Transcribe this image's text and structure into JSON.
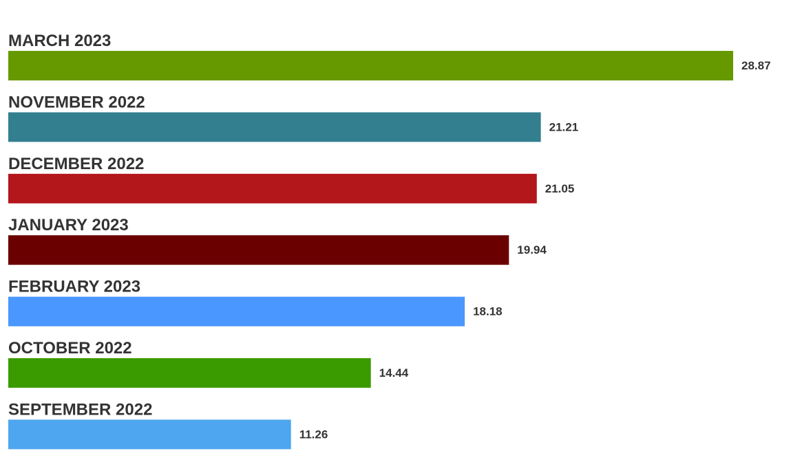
{
  "chart_data": {
    "type": "bar",
    "orientation": "horizontal",
    "categories": [
      "MARCH 2023",
      "NOVEMBER 2022",
      "DECEMBER 2022",
      "JANUARY 2023",
      "FEBRUARY 2023",
      "OCTOBER 2022",
      "SEPTEMBER 2022"
    ],
    "values": [
      28.87,
      21.21,
      21.05,
      19.94,
      18.18,
      14.44,
      11.26
    ],
    "colors": [
      "#669900",
      "#337f8f",
      "#b3161b",
      "#6b0000",
      "#4a97ff",
      "#3a9b00",
      "#4da6ef"
    ]
  }
}
